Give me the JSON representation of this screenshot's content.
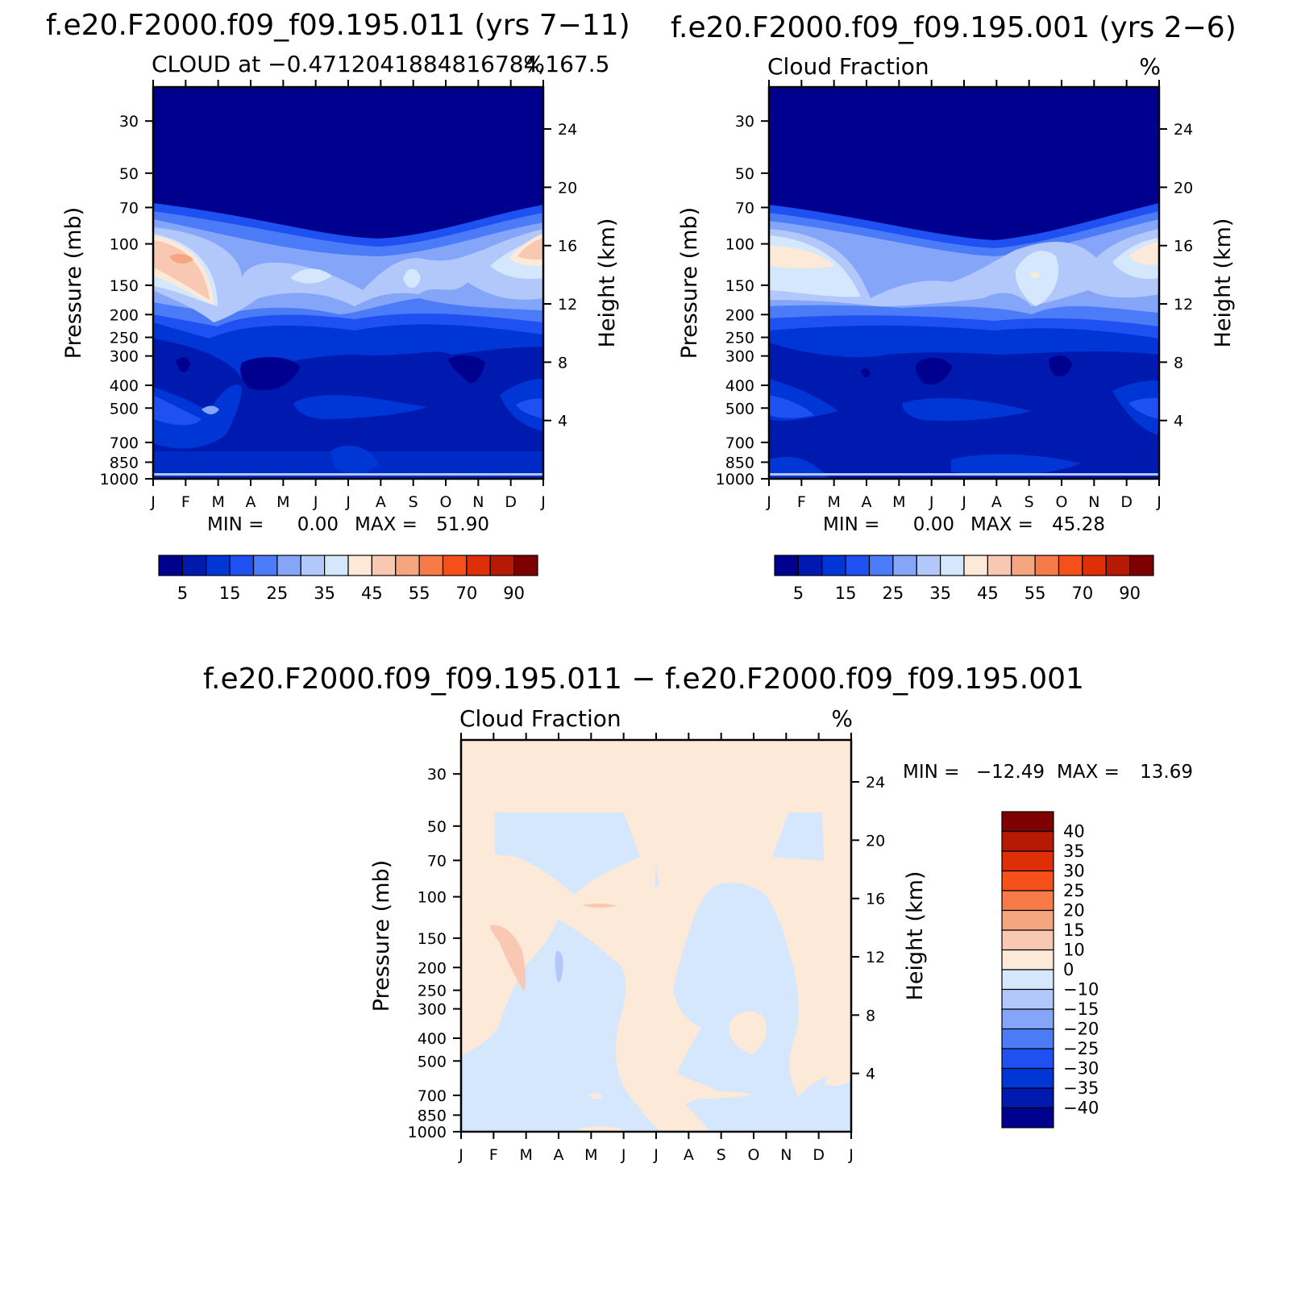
{
  "colors": {
    "seq": [
      "#00008e",
      "#001ab0",
      "#0035d6",
      "#1f50f2",
      "#4c7bf8",
      "#85a5f9",
      "#b3c8fa",
      "#d5e7fc",
      "#fde9d8",
      "#f8c8b2",
      "#f6a581",
      "#f77b48",
      "#f6501a",
      "#de2f07",
      "#b61a04",
      "#7f0000"
    ],
    "diff": [
      "#00008e",
      "#001ab0",
      "#0035d6",
      "#1f50f2",
      "#4c7bf8",
      "#85a5f9",
      "#b3c8fa",
      "#d5e7fc",
      "#fde9d8",
      "#f8c8b2",
      "#f6a581",
      "#f77b48",
      "#f6501a",
      "#de2f07",
      "#b61a04",
      "#7f0000"
    ]
  },
  "chart_data": [
    {
      "type": "contour",
      "title": "f.e20.F2000.f09_f09.195.011 (yrs 7−11)",
      "subtitle_left": "CLOUD at −0.4712041884816784,167.5",
      "subtitle_right": "%",
      "ylabel": "Pressure (mb)",
      "ylabel_right": "Height (km)",
      "x_ticks": [
        "J",
        "F",
        "M",
        "A",
        "M",
        "J",
        "J",
        "A",
        "S",
        "O",
        "N",
        "D",
        "J"
      ],
      "y_ticks": [
        "30",
        "50",
        "70",
        "100",
        "150",
        "200",
        "250",
        "300",
        "400",
        "500",
        "700",
        "850",
        "1000"
      ],
      "y_right_ticks": [
        "24",
        "20",
        "16",
        "12",
        "8",
        "4"
      ],
      "min_label": "MIN =",
      "min_value": "0.00",
      "max_label": "MAX =",
      "max_value": "51.90",
      "colorbar_labels": [
        "5",
        "15",
        "25",
        "35",
        "45",
        "55",
        "70",
        "90"
      ],
      "levels": [
        5,
        10,
        15,
        20,
        25,
        30,
        35,
        40,
        45,
        50,
        55,
        60,
        70,
        80,
        90
      ]
    },
    {
      "type": "contour",
      "title": "f.e20.F2000.f09_f09.195.001 (yrs 2−6)",
      "subtitle_left": "Cloud Fraction",
      "subtitle_right": "%",
      "ylabel": "Pressure (mb)",
      "ylabel_right": "Height (km)",
      "x_ticks": [
        "J",
        "F",
        "M",
        "A",
        "M",
        "J",
        "J",
        "A",
        "S",
        "O",
        "N",
        "D",
        "J"
      ],
      "y_ticks": [
        "30",
        "50",
        "70",
        "100",
        "150",
        "200",
        "250",
        "300",
        "400",
        "500",
        "700",
        "850",
        "1000"
      ],
      "y_right_ticks": [
        "24",
        "20",
        "16",
        "12",
        "8",
        "4"
      ],
      "min_label": "MIN =",
      "min_value": "0.00",
      "max_label": "MAX =",
      "max_value": "45.28",
      "colorbar_labels": [
        "5",
        "15",
        "25",
        "35",
        "45",
        "55",
        "70",
        "90"
      ],
      "levels": [
        5,
        10,
        15,
        20,
        25,
        30,
        35,
        40,
        45,
        50,
        55,
        60,
        70,
        80,
        90
      ]
    },
    {
      "type": "contour",
      "title": "f.e20.F2000.f09_f09.195.011 − f.e20.F2000.f09_f09.195.001",
      "subtitle_left": "Cloud Fraction",
      "subtitle_right": "%",
      "ylabel": "Pressure (mb)",
      "ylabel_right": "Height (km)",
      "x_ticks": [
        "J",
        "F",
        "M",
        "A",
        "M",
        "J",
        "J",
        "A",
        "S",
        "O",
        "N",
        "D",
        "J"
      ],
      "y_ticks": [
        "30",
        "50",
        "70",
        "100",
        "150",
        "200",
        "250",
        "300",
        "400",
        "500",
        "700",
        "850",
        "1000"
      ],
      "y_right_ticks": [
        "24",
        "20",
        "16",
        "12",
        "8",
        "4"
      ],
      "min_label": "MIN =",
      "min_value": "−12.49",
      "max_label": "MAX =",
      "max_value": "13.69",
      "colorbar_labels": [
        "40",
        "35",
        "30",
        "25",
        "20",
        "15",
        "10",
        "0",
        "−10",
        "−15",
        "−20",
        "−25",
        "−30",
        "−35",
        "−40"
      ],
      "levels": [
        -40,
        -35,
        -30,
        -25,
        -20,
        -15,
        -10,
        0,
        10,
        15,
        20,
        25,
        30,
        35,
        40
      ]
    }
  ]
}
